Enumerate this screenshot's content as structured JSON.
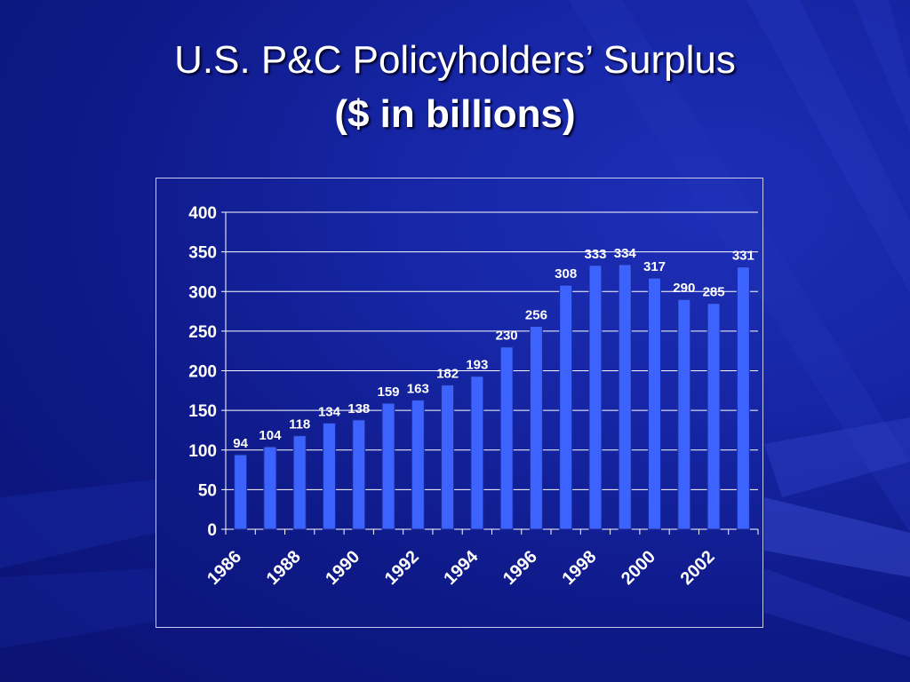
{
  "slide": {
    "title": "U.S. P&C Policyholders’ Surplus",
    "subtitle": "($ in billions)"
  },
  "colors": {
    "background": "#1323a0",
    "bar_fill": "#3d63ff",
    "bar_stroke": "#1a2a9a",
    "text": "#ffffff",
    "gridline": "#ffffff"
  },
  "chart_data": {
    "type": "bar",
    "categories": [
      "1986",
      "1987",
      "1988",
      "1989",
      "1990",
      "1991",
      "1992",
      "1993",
      "1994",
      "1995",
      "1996",
      "1997",
      "1998",
      "1999",
      "2000",
      "2001",
      "2002",
      "2003"
    ],
    "x_tick_labels": [
      "1986",
      "",
      "1988",
      "",
      "1990",
      "",
      "1992",
      "",
      "1994",
      "",
      "1996",
      "",
      "1998",
      "",
      "2000",
      "",
      "2002",
      ""
    ],
    "values": [
      94,
      104,
      118,
      134,
      138,
      159,
      163,
      182,
      193,
      230,
      256,
      308,
      333,
      334,
      317,
      290,
      285,
      331
    ],
    "data_labels": [
      "94",
      "104",
      "118",
      "134",
      "138",
      "159",
      "163",
      "182",
      "193",
      "230",
      "256",
      "308",
      "333",
      "334",
      "317",
      "290",
      "285",
      "331"
    ],
    "y_ticks": [
      "0",
      "50",
      "100",
      "150",
      "200",
      "250",
      "300",
      "350",
      "400"
    ],
    "ylim": [
      0,
      400
    ],
    "grid": true,
    "legend": "none"
  }
}
